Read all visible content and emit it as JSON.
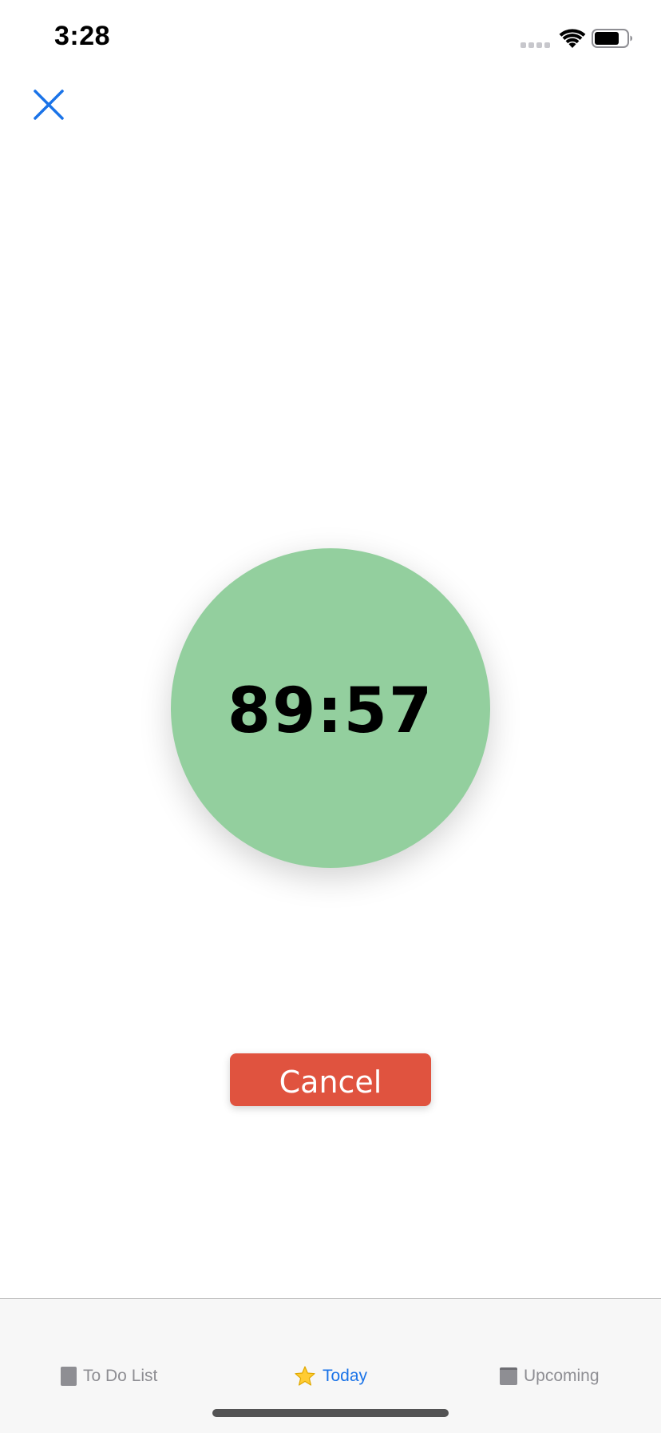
{
  "status_bar": {
    "time": "3:28",
    "signal_icon": "signal-dots-icon",
    "wifi_icon": "wifi-icon",
    "battery_icon": "battery-icon"
  },
  "header": {
    "close_icon": "close-icon",
    "accent_color": "#1a73e8"
  },
  "timer": {
    "display": "89:57",
    "circle_color": "#93cf9e"
  },
  "actions": {
    "cancel_label": "Cancel",
    "cancel_color": "#e0533f"
  },
  "tab_bar": {
    "selected": "Today",
    "tabs": [
      {
        "label": "To Do List",
        "icon": "notebook-icon",
        "active": false
      },
      {
        "label": "Today",
        "icon": "star-icon",
        "active": true
      },
      {
        "label": "Upcoming",
        "icon": "calendar-icon",
        "active": false
      }
    ],
    "active_color": "#1a73e8",
    "inactive_color": "#8e8e93"
  }
}
